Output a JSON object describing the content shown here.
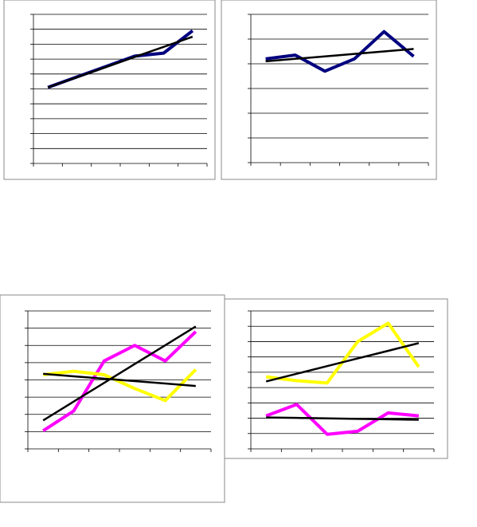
{
  "chart_data": [
    {
      "type": "line",
      "categories": [
        null,
        null,
        null,
        null,
        null,
        null
      ],
      "ylim": [
        0,
        10
      ],
      "yticks": [
        0,
        1,
        2,
        3,
        4,
        5,
        6,
        7,
        8,
        9,
        10
      ],
      "grid": true,
      "series": [
        {
          "color": "#000080",
          "values": [
            5.1,
            5.8,
            6.5,
            7.2,
            7.4,
            8.9
          ]
        },
        {
          "color": "#000000",
          "values": [
            5.1,
            5.78,
            6.46,
            7.14,
            7.82,
            8.5
          ]
        }
      ]
    },
    {
      "type": "line",
      "categories": [
        null,
        null,
        null,
        null,
        null,
        null
      ],
      "ylim": [
        0,
        6
      ],
      "yticks": [
        0,
        1,
        2,
        3,
        4,
        5,
        6
      ],
      "grid": true,
      "series": [
        {
          "color": "#000080",
          "values": [
            4.2,
            4.35,
            3.7,
            4.2,
            5.3,
            4.3
          ]
        },
        {
          "color": "#000000",
          "values": [
            4.1,
            4.2,
            4.3,
            4.4,
            4.5,
            4.6
          ]
        }
      ]
    },
    {
      "type": "line",
      "categories": [
        null,
        null,
        null,
        null,
        null,
        null
      ],
      "ylim": [
        0,
        8
      ],
      "yticks": [
        0,
        1,
        2,
        3,
        4,
        5,
        6,
        7,
        8
      ],
      "grid": true,
      "series": [
        {
          "color": "#ff00ff",
          "values": [
            1.05,
            2.2,
            5.1,
            6,
            5.1,
            6.8
          ]
        },
        {
          "color": "#ffff00",
          "values": [
            4.3,
            4.5,
            4.3,
            3.5,
            2.8,
            4.6
          ]
        },
        {
          "color": "#000000",
          "values": [
            1.65,
            2.74,
            3.83,
            4.92,
            6.01,
            7.1
          ]
        },
        {
          "color": "#000000",
          "values": [
            4.35,
            4.21,
            4.07,
            3.93,
            3.79,
            3.65
          ]
        }
      ]
    },
    {
      "type": "line",
      "categories": [
        null,
        null,
        null,
        null,
        null,
        null
      ],
      "ylim": [
        0,
        9
      ],
      "yticks": [
        0,
        1,
        2,
        3,
        4,
        5,
        6,
        7,
        8,
        9
      ],
      "grid": true,
      "series": [
        {
          "color": "#ff00ff",
          "values": [
            2.15,
            2.9,
            0.95,
            1.15,
            2.35,
            2.15
          ]
        },
        {
          "color": "#ffff00",
          "values": [
            4.7,
            4.45,
            4.3,
            7,
            8.2,
            5.35
          ]
        },
        {
          "color": "#000000",
          "values": [
            4.4,
            4.9,
            5.4,
            5.9,
            6.4,
            6.9
          ]
        },
        {
          "color": "#000000",
          "values": [
            2.05,
            2.02,
            1.99,
            1.96,
            1.93,
            1.9
          ]
        }
      ]
    }
  ]
}
